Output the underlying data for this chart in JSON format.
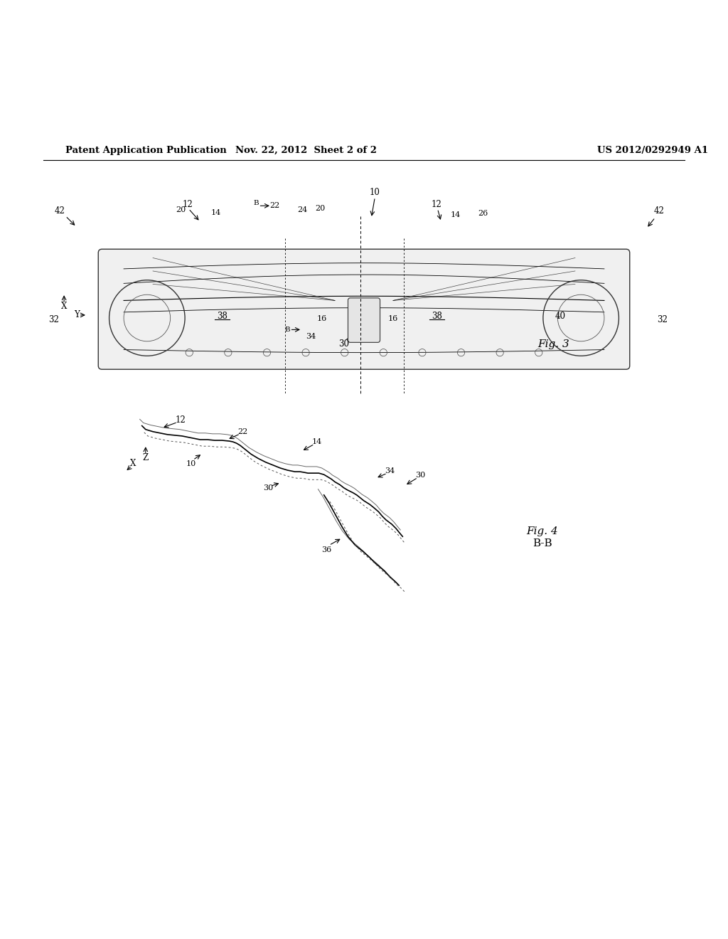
{
  "bg_color": "#ffffff",
  "header_left": "Patent Application Publication",
  "header_mid": "Nov. 22, 2012  Sheet 2 of 2",
  "header_right": "US 2012/0292949 A1",
  "fig3_label": "Fig. 3",
  "fig4_label": "Fig. 4",
  "fig4_sublabel": "B-B"
}
